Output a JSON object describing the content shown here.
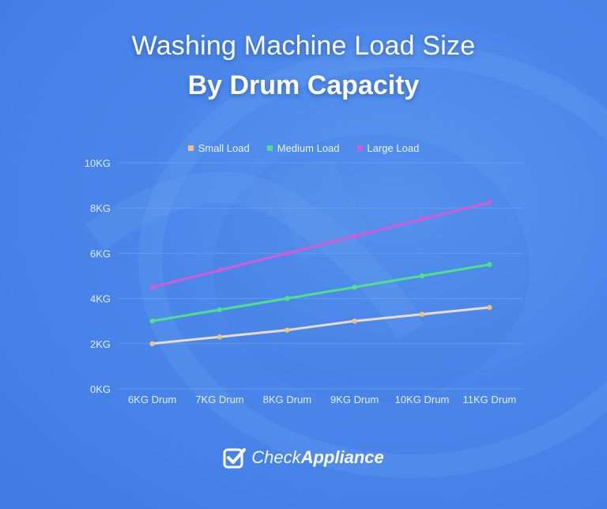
{
  "title": {
    "line1": "Washing Machine Load Size",
    "line2": "By Drum Capacity"
  },
  "legend": [
    {
      "label": "Small Load",
      "color": "#f0c27a"
    },
    {
      "label": "Medium Load",
      "color": "#4fe08a"
    },
    {
      "label": "Large Load",
      "color": "#d45ad6"
    }
  ],
  "y_axis_ticks": [
    "0KG",
    "2KG",
    "4KG",
    "6KG",
    "8KG",
    "10KG"
  ],
  "x_axis_ticks": [
    "6KG Drum",
    "7KG Drum",
    "8KG Drum",
    "9KG Drum",
    "10KG Drum",
    "11KG Drum"
  ],
  "brand": {
    "light": "Check",
    "bold": "Appliance",
    "icon": "checkbox-check-icon"
  },
  "colors": {
    "background": "#4a86ea",
    "gridline": "#6fa0ef",
    "small": "#f0c27a",
    "small_line": "#e8dcc8",
    "medium": "#4fe08a",
    "large": "#d45ad6"
  },
  "chart_data": {
    "type": "line",
    "title": "Washing Machine Load Size By Drum Capacity",
    "xlabel": "",
    "ylabel": "",
    "categories": [
      "6KG Drum",
      "7KG Drum",
      "8KG Drum",
      "9KG Drum",
      "10KG Drum",
      "11KG Drum"
    ],
    "series": [
      {
        "name": "Small Load",
        "color": "#f0c27a",
        "values": [
          2.0,
          2.3,
          2.6,
          3.0,
          3.3,
          3.6
        ]
      },
      {
        "name": "Medium Load",
        "color": "#4fe08a",
        "values": [
          3.0,
          3.5,
          4.0,
          4.5,
          5.0,
          5.5
        ]
      },
      {
        "name": "Large Load",
        "color": "#d45ad6",
        "values": [
          4.5,
          5.25,
          6.0,
          6.75,
          7.5,
          8.25
        ]
      }
    ],
    "ylim": [
      0,
      10
    ],
    "yticks": [
      0,
      2,
      4,
      6,
      8,
      10
    ],
    "ytick_labels": [
      "0KG",
      "2KG",
      "4KG",
      "6KG",
      "8KG",
      "10KG"
    ],
    "grid": true,
    "legend_position": "top"
  }
}
